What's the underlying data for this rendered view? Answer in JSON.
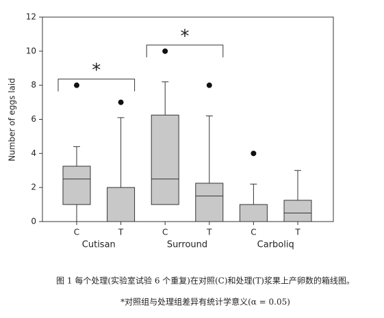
{
  "chart_data": {
    "type": "box",
    "ylabel": "Number of eggs laid",
    "ylim": [
      0,
      12
    ],
    "yticks": [
      0,
      2,
      4,
      6,
      8,
      10,
      12
    ],
    "categories": [
      "C",
      "T",
      "C",
      "T",
      "C",
      "T"
    ],
    "groups": [
      "Cutisan",
      "Surround",
      "Carboliq"
    ],
    "color": "#c8c8c8",
    "boxes": [
      {
        "min": 0,
        "q1": 1,
        "median": 2.5,
        "q3": 3.25,
        "max": 4.4,
        "outliers": [
          8
        ]
      },
      {
        "min": 0,
        "q1": 0,
        "median": 0,
        "q3": 2,
        "max": 6.1,
        "outliers": [
          7
        ]
      },
      {
        "min": 1,
        "q1": 1,
        "median": 2.5,
        "q3": 6.25,
        "max": 8.2,
        "outliers": [
          10
        ]
      },
      {
        "min": 0,
        "q1": 0,
        "median": 1.5,
        "q3": 2.25,
        "max": 6.2,
        "outliers": [
          8
        ]
      },
      {
        "min": 0,
        "q1": 0,
        "median": 0,
        "q3": 1,
        "max": 2.2,
        "outliers": [
          4
        ]
      },
      {
        "min": 0,
        "q1": 0,
        "median": 0.5,
        "q3": 1.25,
        "max": 3,
        "outliers": []
      }
    ],
    "brackets": [
      {
        "group": "Cutisan",
        "label": "*"
      },
      {
        "group": "Surround",
        "label": "*"
      }
    ],
    "caption": [
      "图 1 每个处理(实验室试验 6 个重复)在对照(C)和处理(T)浆果上产卵数的箱线图。",
      "*对照组与处理组差异有统计学意义(α = 0.05)"
    ]
  }
}
